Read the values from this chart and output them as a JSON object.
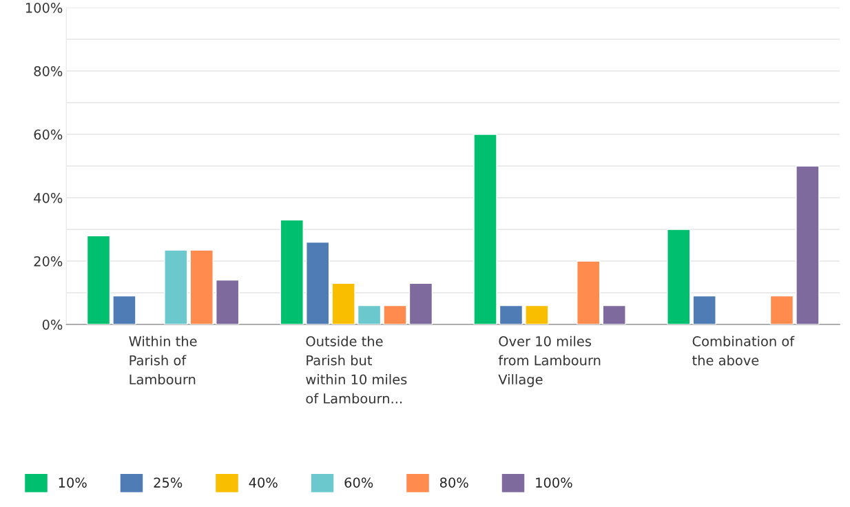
{
  "chart_data": {
    "type": "bar",
    "categories": [
      "Within the Parish of Lambourn",
      "Outside the Parish but within 10 miles of Lambourn...",
      "Over 10 miles from Lambourn Village",
      "Combination of the above"
    ],
    "series": [
      {
        "name": "10%",
        "color": "#00bf6f",
        "values": [
          28,
          33,
          60,
          30
        ]
      },
      {
        "name": "25%",
        "color": "#507cb6",
        "values": [
          9,
          26,
          6,
          9
        ]
      },
      {
        "name": "40%",
        "color": "#f9be00",
        "values": [
          null,
          13,
          6,
          null
        ]
      },
      {
        "name": "60%",
        "color": "#6bc8cd",
        "values": [
          23.5,
          6,
          null,
          null
        ]
      },
      {
        "name": "80%",
        "color": "#ff8b4f",
        "values": [
          23.5,
          6,
          20,
          9
        ]
      },
      {
        "name": "100%",
        "color": "#7f6a9e",
        "values": [
          14,
          13,
          6,
          50
        ]
      }
    ],
    "ylim": [
      0,
      100
    ],
    "yticks": [
      {
        "value": 0,
        "label": "0%"
      },
      {
        "value": 10,
        "label": null
      },
      {
        "value": 20,
        "label": "20%"
      },
      {
        "value": 30,
        "label": null
      },
      {
        "value": 40,
        "label": "40%"
      },
      {
        "value": 50,
        "label": null
      },
      {
        "value": 60,
        "label": "60%"
      },
      {
        "value": 70,
        "label": null
      },
      {
        "value": 80,
        "label": "80%"
      },
      {
        "value": 90,
        "label": null
      },
      {
        "value": 100,
        "label": "100%"
      }
    ],
    "grid": "y",
    "legend": "bottom"
  }
}
